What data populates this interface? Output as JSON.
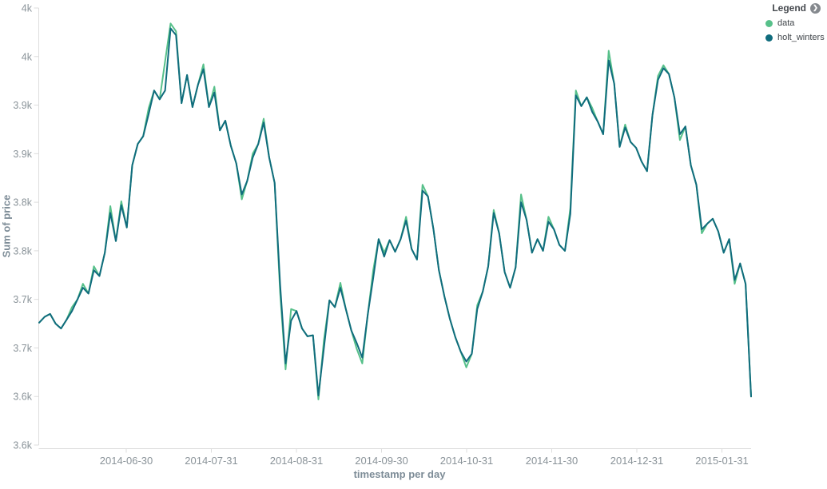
{
  "legend": {
    "title": "Legend",
    "items": [
      {
        "label": "data",
        "color": "#57c08a"
      },
      {
        "label": "holt_winters",
        "color": "#106c7d"
      }
    ]
  },
  "chart_data": {
    "type": "line",
    "title": "",
    "xlabel": "timestamp per day",
    "ylabel": "Sum of price",
    "x_range": [
      "2014-05-29",
      "2015-02-13"
    ],
    "x_tick_labels": [
      "2014-06-30",
      "2014-07-31",
      "2014-08-31",
      "2014-09-30",
      "2014-10-31",
      "2014-11-30",
      "2014-12-31",
      "2015-01-31"
    ],
    "y_tick_labels": [
      "4k",
      "4k",
      "3.9k",
      "3.9k",
      "3.8k",
      "3.8k",
      "3.7k",
      "3.7k",
      "3.6k",
      "3.6k"
    ],
    "y_tick_values": [
      4.0,
      3.95,
      3.9,
      3.85,
      3.8,
      3.75,
      3.7,
      3.65,
      3.6,
      3.55
    ],
    "ylim": [
      3.55,
      4.0
    ],
    "grid": false,
    "legend_position": "top-right",
    "axis_color": "#dddddd",
    "tick_label_color": "#8a9399",
    "series": [
      {
        "name": "data",
        "color": "#57c08a",
        "values": [
          3.676,
          3.682,
          3.685,
          3.675,
          3.67,
          3.679,
          3.692,
          3.7,
          3.716,
          3.706,
          3.734,
          3.724,
          3.748,
          3.796,
          3.76,
          3.801,
          3.774,
          3.838,
          3.86,
          3.868,
          3.897,
          3.915,
          3.906,
          3.945,
          3.984,
          3.976,
          3.902,
          3.931,
          3.898,
          3.921,
          3.942,
          3.898,
          3.919,
          3.874,
          3.884,
          3.858,
          3.84,
          3.803,
          3.822,
          3.85,
          3.86,
          3.886,
          3.846,
          3.82,
          3.707,
          3.628,
          3.69,
          3.688,
          3.67,
          3.662,
          3.663,
          3.597,
          3.658,
          3.699,
          3.692,
          3.717,
          3.69,
          3.668,
          3.649,
          3.634,
          3.684,
          3.73,
          3.762,
          3.748,
          3.761,
          3.749,
          3.762,
          3.785,
          3.752,
          3.741,
          3.818,
          3.806,
          3.772,
          3.73,
          3.703,
          3.68,
          3.661,
          3.646,
          3.63,
          3.644,
          3.694,
          3.708,
          3.734,
          3.792,
          3.768,
          3.728,
          3.712,
          3.733,
          3.808,
          3.782,
          3.748,
          3.762,
          3.75,
          3.785,
          3.772,
          3.756,
          3.75,
          3.794,
          3.915,
          3.899,
          3.908,
          3.897,
          3.883,
          3.87,
          3.956,
          3.922,
          3.857,
          3.88,
          3.862,
          3.856,
          3.842,
          3.832,
          3.89,
          3.93,
          3.941,
          3.932,
          3.908,
          3.864,
          3.878,
          3.838,
          3.818,
          3.768,
          3.778,
          3.783,
          3.77,
          3.748,
          3.762,
          3.716,
          3.737,
          3.716,
          3.6
        ]
      },
      {
        "name": "holt_winters",
        "color": "#106c7d",
        "values": [
          3.676,
          3.682,
          3.685,
          3.675,
          3.67,
          3.679,
          3.688,
          3.7,
          3.712,
          3.706,
          3.73,
          3.724,
          3.748,
          3.789,
          3.76,
          3.797,
          3.774,
          3.838,
          3.86,
          3.868,
          3.891,
          3.915,
          3.906,
          3.915,
          3.979,
          3.972,
          3.902,
          3.931,
          3.898,
          3.921,
          3.937,
          3.898,
          3.913,
          3.874,
          3.884,
          3.858,
          3.84,
          3.808,
          3.822,
          3.846,
          3.86,
          3.882,
          3.846,
          3.82,
          3.715,
          3.634,
          3.678,
          3.688,
          3.67,
          3.662,
          3.663,
          3.601,
          3.65,
          3.699,
          3.692,
          3.712,
          3.69,
          3.668,
          3.655,
          3.64,
          3.684,
          3.722,
          3.762,
          3.744,
          3.761,
          3.749,
          3.762,
          3.781,
          3.752,
          3.741,
          3.812,
          3.806,
          3.772,
          3.73,
          3.703,
          3.68,
          3.661,
          3.646,
          3.636,
          3.644,
          3.69,
          3.708,
          3.734,
          3.789,
          3.768,
          3.728,
          3.712,
          3.733,
          3.8,
          3.782,
          3.748,
          3.762,
          3.75,
          3.78,
          3.772,
          3.756,
          3.75,
          3.788,
          3.91,
          3.899,
          3.908,
          3.893,
          3.883,
          3.87,
          3.946,
          3.922,
          3.857,
          3.877,
          3.862,
          3.856,
          3.842,
          3.832,
          3.89,
          3.926,
          3.938,
          3.932,
          3.908,
          3.87,
          3.878,
          3.838,
          3.818,
          3.772,
          3.778,
          3.783,
          3.77,
          3.748,
          3.762,
          3.72,
          3.737,
          3.716,
          3.6
        ]
      }
    ]
  }
}
